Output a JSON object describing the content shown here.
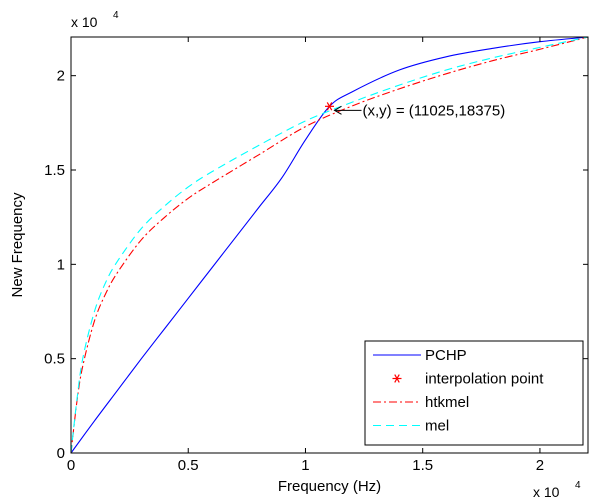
{
  "chart_data": {
    "type": "line",
    "title": "",
    "xlabel": "Frequency (Hz)",
    "ylabel": "New Frequency",
    "x_exponent_label": "x 10",
    "y_exponent_label": "x 10",
    "exponent_power": "4",
    "xlim": [
      0,
      22050
    ],
    "ylim": [
      0,
      22050
    ],
    "x_ticks": [
      {
        "value": 0,
        "label": "0"
      },
      {
        "value": 5000,
        "label": "0.5"
      },
      {
        "value": 10000,
        "label": "1"
      },
      {
        "value": 15000,
        "label": "1.5"
      },
      {
        "value": 20000,
        "label": "2"
      }
    ],
    "y_ticks": [
      {
        "value": 0,
        "label": "0"
      },
      {
        "value": 5000,
        "label": "0.5"
      },
      {
        "value": 10000,
        "label": "1"
      },
      {
        "value": 15000,
        "label": "1.5"
      },
      {
        "value": 20000,
        "label": "2"
      }
    ],
    "grid": false,
    "legend_position": "bottom-right",
    "annotation": {
      "text": "(x,y) = (11025,18375)",
      "x": 11025,
      "y": 18375
    },
    "series": [
      {
        "name": "PCHP",
        "color": "#0000ff",
        "style": "solid",
        "x": [
          0,
          1000,
          2000,
          3000,
          4000,
          5000,
          6000,
          7000,
          8000,
          9000,
          10000,
          11025,
          12000,
          14000,
          16000,
          18000,
          20000,
          22050
        ],
        "y": [
          0,
          1700,
          3350,
          5000,
          6600,
          8200,
          9800,
          11400,
          13000,
          14600,
          16600,
          18375,
          19150,
          20300,
          21000,
          21450,
          21800,
          22050
        ]
      },
      {
        "name": "interpolation point",
        "color": "#ff0000",
        "style": "marker",
        "x": [
          11025
        ],
        "y": [
          18375
        ]
      },
      {
        "name": "htkmel",
        "color": "#ff0000",
        "style": "dashdot",
        "x": [
          0,
          250,
          500,
          1000,
          1500,
          2000,
          3000,
          4000,
          5000,
          6000,
          8000,
          10000,
          12000,
          14000,
          16000,
          18000,
          20000,
          22050
        ],
        "y": [
          0,
          2700,
          4600,
          7000,
          8500,
          9600,
          11300,
          12500,
          13500,
          14300,
          15800,
          17300,
          18400,
          19300,
          20100,
          20800,
          21400,
          22050
        ]
      },
      {
        "name": "mel",
        "color": "#00ffff",
        "style": "dashed",
        "x": [
          0,
          250,
          500,
          1000,
          1500,
          2000,
          3000,
          4000,
          5000,
          6000,
          8000,
          10000,
          12000,
          14000,
          16000,
          18000,
          20000,
          22050
        ],
        "y": [
          0,
          2800,
          5000,
          7500,
          9100,
          10200,
          11900,
          13100,
          14100,
          14900,
          16300,
          17600,
          18600,
          19500,
          20300,
          20950,
          21500,
          22050
        ]
      }
    ]
  }
}
